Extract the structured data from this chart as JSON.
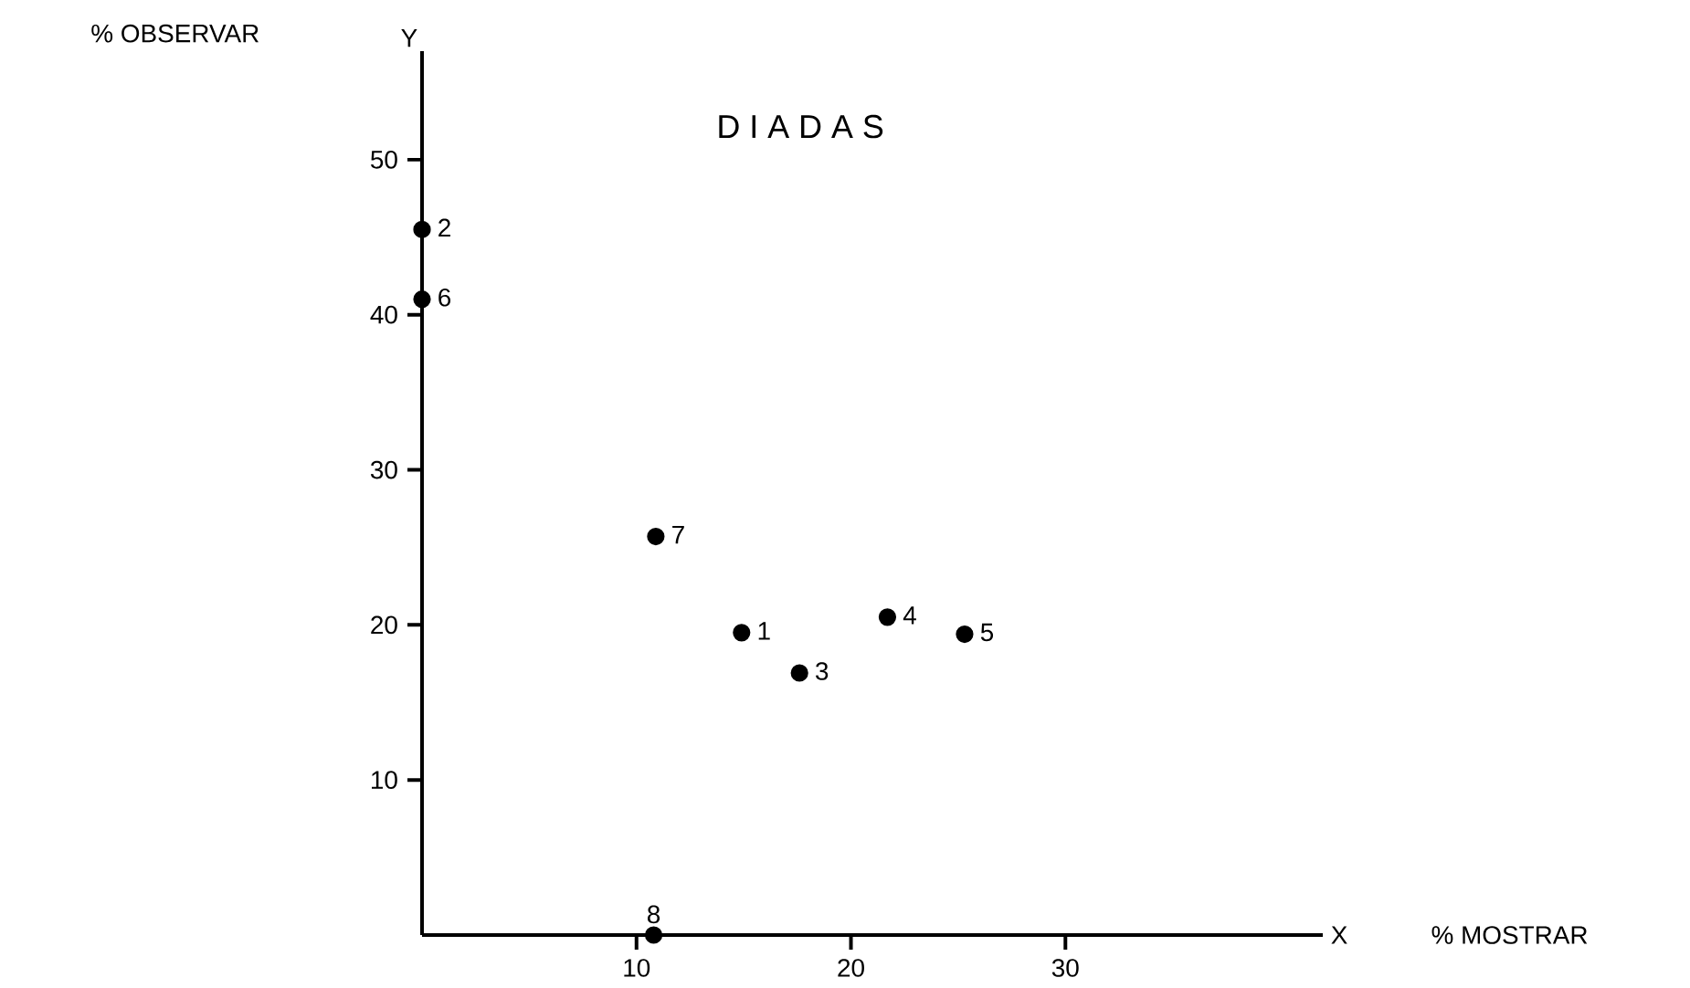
{
  "chart_data": {
    "type": "scatter",
    "title": "D I A D A S",
    "xlabel": "% MOSTRAR",
    "ylabel": "% OBSERVAR",
    "x": [
      14.9,
      0,
      17.6,
      21.7,
      25.3,
      0,
      10.9,
      10.8
    ],
    "values": [
      19.5,
      45.5,
      16.9,
      20.5,
      19.4,
      41.0,
      25.7,
      0
    ],
    "color": "#000000",
    "marker": "circle",
    "xlim": [
      0,
      42
    ],
    "ylim": [
      0,
      57
    ],
    "xticks": [
      10,
      20,
      30
    ],
    "yticks": [
      10,
      20,
      30,
      40,
      50
    ],
    "grid": false,
    "annotations": [
      "Y",
      "X",
      {
        "text": "1",
        "x": 14.9,
        "y": 19.5
      },
      {
        "text": "2",
        "x": 0,
        "y": 45.5
      },
      {
        "text": "3",
        "x": 17.6,
        "y": 16.9
      },
      {
        "text": "4",
        "x": 21.7,
        "y": 20.5
      },
      {
        "text": "5",
        "x": 25.3,
        "y": 19.4
      },
      {
        "text": "6",
        "x": 0,
        "y": 41.0
      },
      {
        "text": "7",
        "x": 10.9,
        "y": 25.7
      },
      {
        "text": "8",
        "x": 10.8,
        "y": 0
      }
    ]
  }
}
